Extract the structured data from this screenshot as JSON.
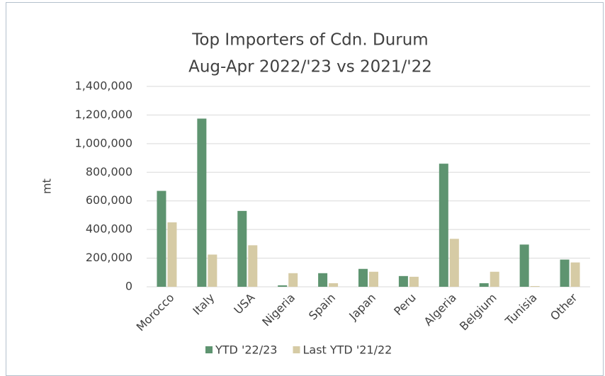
{
  "chart_data": {
    "type": "bar",
    "title": "Top Importers of Cdn. Durum",
    "subtitle": "Aug-Apr 2022/'23 vs 2021/'22",
    "y_label": "mt",
    "categories": [
      "Morocco",
      "Italy",
      "USA",
      "Nigeria",
      "Spain",
      "Japan",
      "Peru",
      "Algeria",
      "Belgium",
      "Tunisia",
      "Other"
    ],
    "series": [
      {
        "name": "YTD '22/23",
        "color": "#5e9470",
        "values": [
          670000,
          1175000,
          530000,
          10000,
          95000,
          125000,
          75000,
          860000,
          25000,
          295000,
          190000
        ]
      },
      {
        "name": "Last YTD '21/22",
        "color": "#d6cba5",
        "values": [
          450000,
          225000,
          290000,
          95000,
          25000,
          105000,
          70000,
          335000,
          105000,
          5000,
          170000
        ]
      }
    ],
    "ylim": [
      0,
      1400000
    ],
    "yticks": [
      0,
      {
        "value": 200000,
        "label": "200,000"
      },
      {
        "value": 400000,
        "label": "400,000"
      },
      {
        "value": 600000,
        "label": "600,000"
      },
      {
        "value": 800000,
        "label": "800,000"
      },
      {
        "value": 1000000,
        "label": "1,000,000"
      },
      {
        "value": 1200000,
        "label": "1,200,000"
      },
      {
        "value": 1400000,
        "label": "1,400,000"
      }
    ],
    "grid": true,
    "legend": "bottom"
  }
}
